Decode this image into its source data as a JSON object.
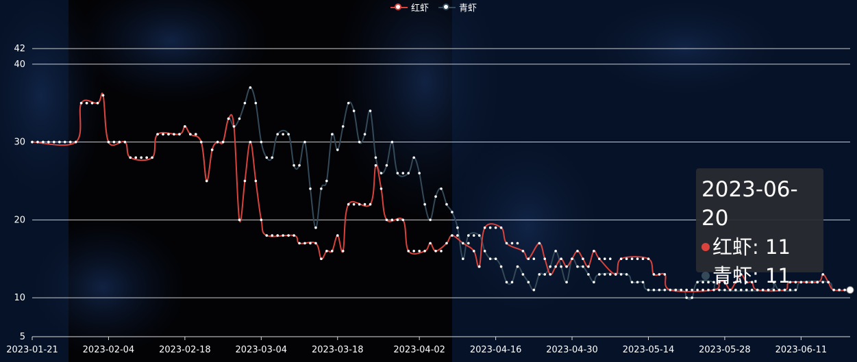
{
  "legend": {
    "series_a": "红虾",
    "series_b": "青虾"
  },
  "colors": {
    "series_a": "#d9433c",
    "series_b": "#344a59",
    "point": "#ffffff",
    "axis": "#dddddd",
    "grid": "#cccccc",
    "background": "#061227"
  },
  "tooltip": {
    "date": "2023-06-20",
    "row_a": "红虾: 11",
    "row_b": "青虾: 11"
  },
  "chart_data": {
    "type": "line",
    "ylim": [
      5,
      42
    ],
    "xlim": [
      "2023-01-21",
      "2023-06-20"
    ],
    "grid": true,
    "legend_position": "top-center",
    "x_tick_labels": [
      "2023-01-21",
      "2023-02-04",
      "2023-02-18",
      "2023-03-04",
      "2023-03-18",
      "2023-04-02",
      "2023-04-16",
      "2023-04-30",
      "2023-05-14",
      "2023-05-28",
      "2023-06-11"
    ],
    "y_tick_labels": [
      "5",
      "10",
      "20",
      "30",
      "40",
      "42"
    ],
    "series": [
      {
        "name": "红虾",
        "points": [
          [
            "2023-01-21",
            30
          ],
          [
            "2023-01-29",
            30
          ],
          [
            "2023-01-30",
            35
          ],
          [
            "2023-02-02",
            35
          ],
          [
            "2023-02-03",
            36
          ],
          [
            "2023-02-04",
            30
          ],
          [
            "2023-02-07",
            30
          ],
          [
            "2023-02-08",
            28
          ],
          [
            "2023-02-12",
            28
          ],
          [
            "2023-02-13",
            31
          ],
          [
            "2023-02-17",
            31
          ],
          [
            "2023-02-18",
            32
          ],
          [
            "2023-02-19",
            31
          ],
          [
            "2023-02-21",
            30
          ],
          [
            "2023-02-22",
            25
          ],
          [
            "2023-02-23",
            29
          ],
          [
            "2023-02-24",
            30
          ],
          [
            "2023-02-25",
            30
          ],
          [
            "2023-02-26",
            33
          ],
          [
            "2023-02-27",
            32
          ],
          [
            "2023-02-28",
            20
          ],
          [
            "2023-03-01",
            25
          ],
          [
            "2023-03-02",
            30
          ],
          [
            "2023-03-03",
            25
          ],
          [
            "2023-03-04",
            20
          ],
          [
            "2023-03-05",
            18
          ],
          [
            "2023-03-10",
            18
          ],
          [
            "2023-03-11",
            17
          ],
          [
            "2023-03-14",
            17
          ],
          [
            "2023-03-15",
            15
          ],
          [
            "2023-03-16",
            16
          ],
          [
            "2023-03-17",
            16
          ],
          [
            "2023-03-18",
            18
          ],
          [
            "2023-03-19",
            16
          ],
          [
            "2023-03-20",
            22
          ],
          [
            "2023-03-24",
            22
          ],
          [
            "2023-03-25",
            27
          ],
          [
            "2023-03-26",
            24
          ],
          [
            "2023-03-27",
            20
          ],
          [
            "2023-03-30",
            20
          ],
          [
            "2023-03-31",
            16
          ],
          [
            "2023-04-03",
            16
          ],
          [
            "2023-04-04",
            17
          ],
          [
            "2023-04-05",
            16
          ],
          [
            "2023-04-07",
            17
          ],
          [
            "2023-04-08",
            18
          ],
          [
            "2023-04-10",
            17
          ],
          [
            "2023-04-12",
            16
          ],
          [
            "2023-04-13",
            14
          ],
          [
            "2023-04-14",
            19
          ],
          [
            "2023-04-17",
            19
          ],
          [
            "2023-04-18",
            17
          ],
          [
            "2023-04-21",
            16
          ],
          [
            "2023-04-22",
            15
          ],
          [
            "2023-04-24",
            17
          ],
          [
            "2023-04-25",
            15
          ],
          [
            "2023-04-26",
            13
          ],
          [
            "2023-04-27",
            14
          ],
          [
            "2023-04-28",
            15
          ],
          [
            "2023-04-29",
            14
          ],
          [
            "2023-04-30",
            15
          ],
          [
            "2023-05-01",
            16
          ],
          [
            "2023-05-02",
            15
          ],
          [
            "2023-05-03",
            14
          ],
          [
            "2023-05-04",
            16
          ],
          [
            "2023-05-05",
            15
          ],
          [
            "2023-05-08",
            13
          ],
          [
            "2023-05-09",
            15
          ],
          [
            "2023-05-14",
            15
          ],
          [
            "2023-05-15",
            13
          ],
          [
            "2023-05-17",
            13
          ],
          [
            "2023-05-18",
            11
          ],
          [
            "2023-05-26",
            11
          ],
          [
            "2023-05-27",
            12
          ],
          [
            "2023-05-28",
            12
          ],
          [
            "2023-05-29",
            11
          ],
          [
            "2023-05-30",
            12
          ],
          [
            "2023-05-31",
            13
          ],
          [
            "2023-06-01",
            12
          ],
          [
            "2023-06-02",
            12
          ],
          [
            "2023-06-03",
            11
          ],
          [
            "2023-06-08",
            11
          ],
          [
            "2023-06-09",
            12
          ],
          [
            "2023-06-14",
            12
          ],
          [
            "2023-06-15",
            13
          ],
          [
            "2023-06-16",
            12
          ],
          [
            "2023-06-17",
            11
          ],
          [
            "2023-06-20",
            11
          ]
        ]
      },
      {
        "name": "青虾",
        "points": [
          [
            "2023-01-21",
            30
          ],
          [
            "2023-01-29",
            30
          ],
          [
            "2023-01-30",
            35
          ],
          [
            "2023-02-02",
            35
          ],
          [
            "2023-02-03",
            36
          ],
          [
            "2023-02-04",
            30
          ],
          [
            "2023-02-07",
            30
          ],
          [
            "2023-02-08",
            28
          ],
          [
            "2023-02-12",
            28
          ],
          [
            "2023-02-13",
            31
          ],
          [
            "2023-02-17",
            31
          ],
          [
            "2023-02-18",
            32
          ],
          [
            "2023-02-19",
            31
          ],
          [
            "2023-02-21",
            30
          ],
          [
            "2023-02-22",
            25
          ],
          [
            "2023-02-23",
            29
          ],
          [
            "2023-02-24",
            30
          ],
          [
            "2023-02-25",
            30
          ],
          [
            "2023-02-26",
            33
          ],
          [
            "2023-02-27",
            32
          ],
          [
            "2023-02-28",
            33
          ],
          [
            "2023-03-01",
            35
          ],
          [
            "2023-03-02",
            37
          ],
          [
            "2023-03-03",
            35
          ],
          [
            "2023-03-04",
            30
          ],
          [
            "2023-03-05",
            28
          ],
          [
            "2023-03-06",
            28
          ],
          [
            "2023-03-07",
            31
          ],
          [
            "2023-03-09",
            31
          ],
          [
            "2023-03-10",
            27
          ],
          [
            "2023-03-11",
            27
          ],
          [
            "2023-03-12",
            30
          ],
          [
            "2023-03-13",
            24
          ],
          [
            "2023-03-14",
            19
          ],
          [
            "2023-03-15",
            24
          ],
          [
            "2023-03-16",
            25
          ],
          [
            "2023-03-17",
            31
          ],
          [
            "2023-03-18",
            29
          ],
          [
            "2023-03-19",
            32
          ],
          [
            "2023-03-20",
            35
          ],
          [
            "2023-03-21",
            34
          ],
          [
            "2023-03-22",
            30
          ],
          [
            "2023-03-23",
            31
          ],
          [
            "2023-03-24",
            34
          ],
          [
            "2023-03-25",
            28
          ],
          [
            "2023-03-26",
            26
          ],
          [
            "2023-03-27",
            27
          ],
          [
            "2023-03-28",
            30
          ],
          [
            "2023-03-29",
            26
          ],
          [
            "2023-03-31",
            26
          ],
          [
            "2023-04-01",
            28
          ],
          [
            "2023-04-02",
            26
          ],
          [
            "2023-04-03",
            22
          ],
          [
            "2023-04-04",
            20
          ],
          [
            "2023-04-05",
            23
          ],
          [
            "2023-04-06",
            24
          ],
          [
            "2023-04-07",
            22
          ],
          [
            "2023-04-08",
            21
          ],
          [
            "2023-04-09",
            19
          ],
          [
            "2023-04-10",
            15
          ],
          [
            "2023-04-11",
            18
          ],
          [
            "2023-04-13",
            18
          ],
          [
            "2023-04-14",
            16
          ],
          [
            "2023-04-15",
            15
          ],
          [
            "2023-04-16",
            15
          ],
          [
            "2023-04-17",
            14
          ],
          [
            "2023-04-18",
            12
          ],
          [
            "2023-04-19",
            12
          ],
          [
            "2023-04-20",
            14
          ],
          [
            "2023-04-21",
            13
          ],
          [
            "2023-04-22",
            12
          ],
          [
            "2023-04-23",
            11
          ],
          [
            "2023-04-24",
            13
          ],
          [
            "2023-04-25",
            13
          ],
          [
            "2023-04-26",
            14
          ],
          [
            "2023-04-27",
            16
          ],
          [
            "2023-04-28",
            14
          ],
          [
            "2023-04-29",
            12
          ],
          [
            "2023-04-30",
            15
          ],
          [
            "2023-05-01",
            14
          ],
          [
            "2023-05-02",
            14
          ],
          [
            "2023-05-03",
            13
          ],
          [
            "2023-05-04",
            12
          ],
          [
            "2023-05-05",
            13
          ],
          [
            "2023-05-10",
            13
          ],
          [
            "2023-05-11",
            12
          ],
          [
            "2023-05-13",
            12
          ],
          [
            "2023-05-14",
            11
          ],
          [
            "2023-05-20",
            11
          ],
          [
            "2023-05-21",
            10
          ],
          [
            "2023-05-22",
            10
          ],
          [
            "2023-05-23",
            12
          ],
          [
            "2023-05-26",
            12
          ],
          [
            "2023-05-27",
            11
          ],
          [
            "2023-06-05",
            11
          ],
          [
            "2023-06-06",
            12
          ],
          [
            "2023-06-07",
            11
          ],
          [
            "2023-06-10",
            11
          ],
          [
            "2023-06-11",
            12
          ],
          [
            "2023-06-16",
            12
          ],
          [
            "2023-06-17",
            11
          ],
          [
            "2023-06-20",
            11
          ]
        ]
      }
    ]
  }
}
